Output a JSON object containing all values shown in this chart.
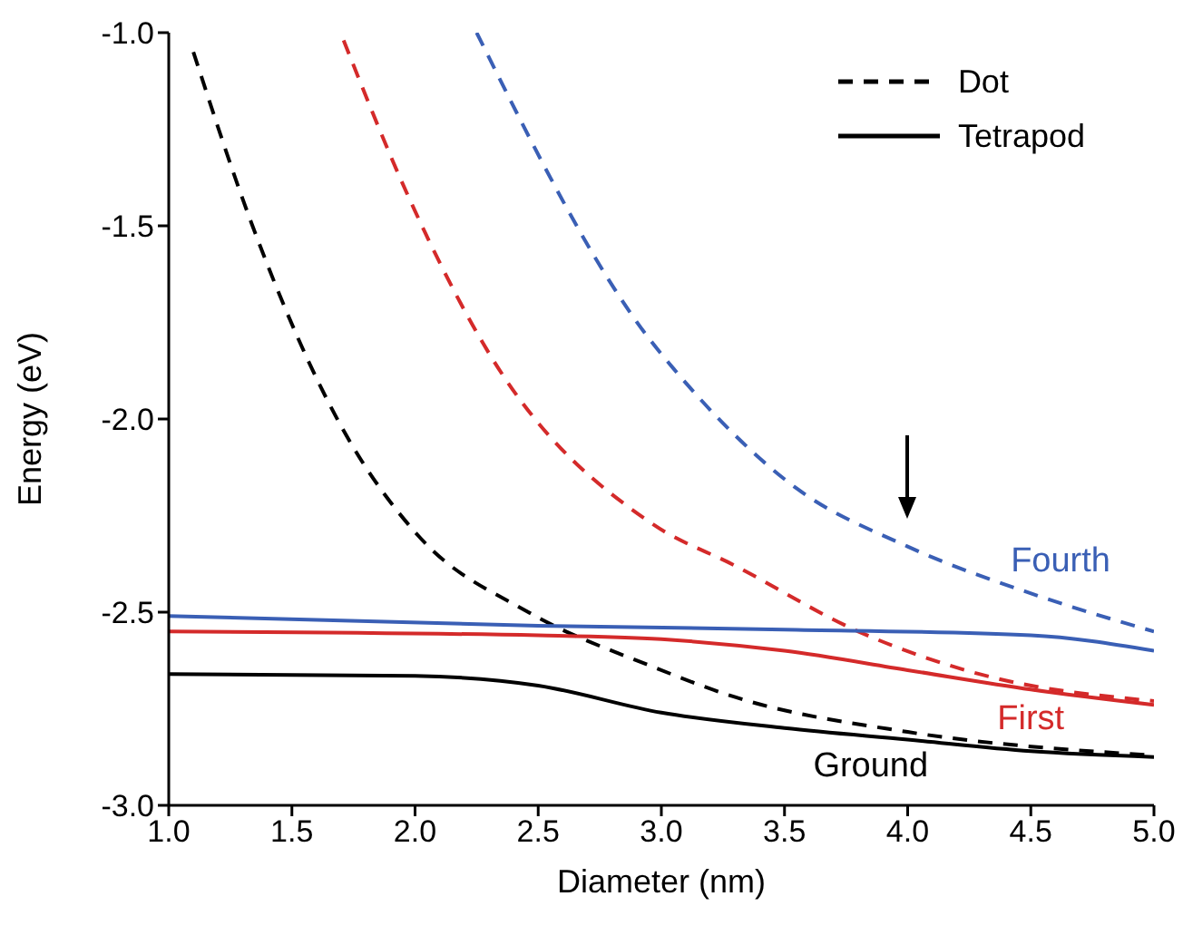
{
  "chart_data": {
    "type": "line",
    "xlabel": "Diameter (nm)",
    "ylabel": "Energy (eV)",
    "xlim": [
      1.0,
      5.0
    ],
    "ylim": [
      -3.0,
      -1.0
    ],
    "xticks": [
      {
        "value": 1,
        "label": "1.0"
      },
      1.5,
      {
        "value": 2,
        "label": "2.0"
      },
      2.5,
      {
        "value": 3,
        "label": "3.0"
      },
      3.5,
      {
        "value": 4,
        "label": "4.0"
      },
      4.5,
      {
        "value": 5,
        "label": "5.0"
      }
    ],
    "yticks": [
      {
        "value": -3,
        "label": "-3.0"
      },
      -2.5,
      {
        "value": -2,
        "label": "-2.0"
      },
      -1.5,
      {
        "value": -1,
        "label": "-1.0"
      }
    ],
    "grid": false,
    "legend": "top right",
    "marker": "none",
    "series": [
      {
        "name": "Dot",
        "color": "#000000",
        "line_style": "dashed",
        "x": [
          1.1,
          1.34,
          1.71,
          2.01,
          2.46,
          2.96,
          3.3,
          4.0,
          4.98
        ],
        "values": [
          -1.05,
          -1.5,
          -2.03,
          -2.3,
          -2.5,
          -2.64,
          -2.72,
          -2.81,
          -2.87
        ]
      },
      {
        "color": "#d42a2a",
        "line_style": "dashed",
        "x": [
          1.71,
          1.97,
          2.31,
          2.96,
          3.3,
          3.8,
          4.29,
          5.0
        ],
        "values": [
          -1.02,
          -1.42,
          -1.84,
          -2.27,
          -2.38,
          -2.55,
          -2.66,
          -2.73
        ]
      },
      {
        "color": "#3a5fb5",
        "line_style": "dashed",
        "x": [
          2.25,
          2.96,
          3.05,
          3.55,
          4.0,
          4.54,
          5.0
        ],
        "values": [
          -1.0,
          -1.8,
          -1.87,
          -2.18,
          -2.33,
          -2.46,
          -2.55
        ]
      },
      {
        "color": "#3a5fb5",
        "line_style": "solid",
        "x": [
          1.0,
          2.5,
          3.5,
          4.5,
          5.0
        ],
        "values": [
          -2.51,
          -2.535,
          -2.545,
          -2.56,
          -2.6
        ]
      },
      {
        "color": "#d42a2a",
        "line_style": "solid",
        "x": [
          1.0,
          2.5,
          3.0,
          3.5,
          4.0,
          4.5,
          5.0
        ],
        "values": [
          -2.55,
          -2.56,
          -2.57,
          -2.6,
          -2.65,
          -2.7,
          -2.74
        ]
      },
      {
        "name": "Tetrapod",
        "color": "#000000",
        "line_style": "solid",
        "x": [
          1.0,
          2.0,
          2.5,
          3.0,
          3.5,
          4.0,
          4.5,
          5.0
        ],
        "values": [
          -2.66,
          -2.665,
          -2.69,
          -2.76,
          -2.8,
          -2.83,
          -2.86,
          -2.875
        ]
      }
    ],
    "annotations": [
      {
        "text": "Fourth",
        "x": 4.54,
        "y": -2.46
      },
      {
        "text": "First",
        "x": 4.5,
        "y": -2.7
      },
      {
        "text": "Ground",
        "x": 3.85,
        "y": -2.82
      }
    ]
  }
}
